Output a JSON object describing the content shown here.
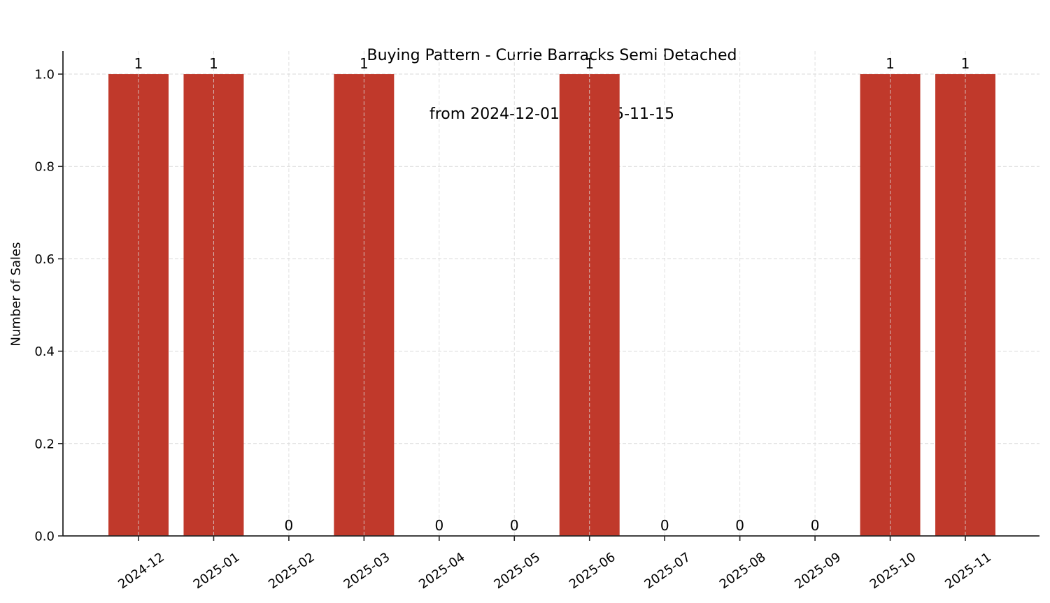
{
  "chart_data": {
    "type": "bar",
    "title": "Buying Pattern - Currie Barracks Semi Detached\nfrom 2024-12-01 to 2025-11-15",
    "title_line1": "Buying Pattern - Currie Barracks Semi Detached",
    "title_line2": "from 2024-12-01 to 2025-11-15",
    "xlabel": "",
    "ylabel": "Number of Sales",
    "categories": [
      "2024-12",
      "2025-01",
      "2025-02",
      "2025-03",
      "2025-04",
      "2025-05",
      "2025-06",
      "2025-07",
      "2025-08",
      "2025-09",
      "2025-10",
      "2025-11"
    ],
    "values": [
      1,
      1,
      0,
      1,
      0,
      0,
      1,
      0,
      0,
      0,
      1,
      1
    ],
    "bar_labels": [
      "1",
      "1",
      "0",
      "1",
      "0",
      "0",
      "1",
      "0",
      "0",
      "0",
      "1",
      "1"
    ],
    "ylim": [
      0,
      1.05
    ],
    "yticks": [
      0.0,
      0.2,
      0.4,
      0.6,
      0.8,
      1.0
    ],
    "ytick_labels": [
      "0.0",
      "0.2",
      "0.4",
      "0.6",
      "0.8",
      "1.0"
    ],
    "grid": true,
    "grid_style": "dashed",
    "legend": null,
    "x_tick_rotation": -35,
    "bar_color": "#c0392b",
    "grid_color": "#d9d9d9",
    "axis_color": "#262626"
  }
}
